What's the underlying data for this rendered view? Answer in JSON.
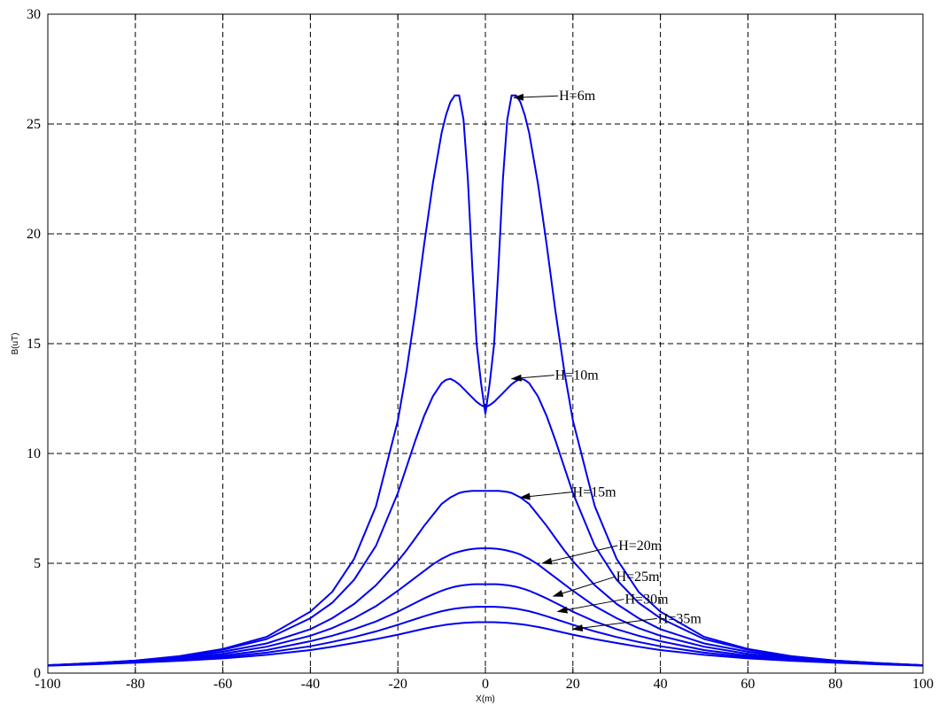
{
  "chart_data": {
    "type": "line",
    "xlabel": "X(m)",
    "ylabel": "B(uT)",
    "xlim": [
      -100,
      100
    ],
    "ylim": [
      0,
      30
    ],
    "xticks": [
      -100,
      -80,
      -60,
      -40,
      -20,
      0,
      20,
      40,
      60,
      80,
      100
    ],
    "yticks": [
      0,
      5,
      10,
      15,
      20,
      25,
      30
    ],
    "grid": true,
    "line_color": "#0000ee",
    "x": [
      -100,
      -90,
      -80,
      -70,
      -60,
      -50,
      -40,
      -35,
      -30,
      -25,
      -20,
      -18,
      -16,
      -14,
      -12,
      -10,
      -9,
      -8,
      -7,
      -6,
      -5,
      -4,
      -3,
      -2,
      -1,
      0,
      1,
      2,
      3,
      4,
      5,
      6,
      7,
      8,
      9,
      10,
      12,
      14,
      16,
      18,
      20,
      25,
      30,
      35,
      40,
      50,
      60,
      70,
      80,
      90,
      100
    ],
    "series": [
      {
        "values": [
          0.36,
          0.45,
          0.57,
          0.77,
          1.1,
          1.65,
          2.8,
          3.7,
          5.2,
          7.6,
          11.5,
          13.8,
          16.5,
          19.5,
          22.3,
          24.6,
          25.4,
          26.0,
          26.3,
          26.3,
          25.2,
          22.5,
          18.5,
          15.0,
          13.2,
          11.8,
          13.2,
          15.0,
          18.5,
          22.5,
          25.2,
          26.3,
          26.3,
          26.0,
          25.4,
          24.6,
          22.3,
          19.5,
          16.5,
          13.8,
          11.5,
          7.6,
          5.2,
          3.7,
          2.8,
          1.65,
          1.1,
          0.77,
          0.57,
          0.45,
          0.36
        ]
      },
      {
        "values": [
          0.36,
          0.45,
          0.57,
          0.76,
          1.06,
          1.55,
          2.5,
          3.2,
          4.25,
          5.8,
          8.2,
          9.4,
          10.6,
          11.7,
          12.6,
          13.2,
          13.35,
          13.4,
          13.3,
          13.15,
          12.95,
          12.75,
          12.55,
          12.35,
          12.2,
          12.1,
          12.2,
          12.35,
          12.55,
          12.75,
          12.95,
          13.15,
          13.3,
          13.4,
          13.35,
          13.2,
          12.6,
          11.7,
          10.6,
          9.4,
          8.2,
          5.8,
          4.25,
          3.2,
          2.5,
          1.55,
          1.06,
          0.76,
          0.57,
          0.45,
          0.36
        ]
      },
      {
        "values": [
          0.36,
          0.44,
          0.55,
          0.72,
          0.97,
          1.35,
          2.0,
          2.5,
          3.15,
          4.0,
          5.1,
          5.6,
          6.15,
          6.7,
          7.2,
          7.7,
          7.85,
          8.0,
          8.1,
          8.2,
          8.25,
          8.28,
          8.3,
          8.3,
          8.3,
          8.3,
          8.3,
          8.3,
          8.3,
          8.28,
          8.25,
          8.2,
          8.1,
          8.0,
          7.85,
          7.7,
          7.2,
          6.7,
          6.15,
          5.6,
          5.1,
          4.0,
          3.15,
          2.5,
          2.0,
          1.35,
          0.97,
          0.72,
          0.55,
          0.44,
          0.36
        ]
      },
      {
        "values": [
          0.36,
          0.43,
          0.53,
          0.68,
          0.88,
          1.2,
          1.7,
          2.05,
          2.5,
          3.05,
          3.75,
          4.05,
          4.35,
          4.65,
          4.95,
          5.2,
          5.3,
          5.4,
          5.47,
          5.53,
          5.58,
          5.62,
          5.65,
          5.67,
          5.68,
          5.68,
          5.68,
          5.67,
          5.65,
          5.62,
          5.58,
          5.53,
          5.47,
          5.4,
          5.3,
          5.2,
          4.95,
          4.65,
          4.35,
          4.05,
          3.75,
          3.05,
          2.5,
          2.05,
          1.7,
          1.2,
          0.88,
          0.68,
          0.53,
          0.43,
          0.36
        ]
      },
      {
        "values": [
          0.35,
          0.42,
          0.51,
          0.63,
          0.8,
          1.05,
          1.45,
          1.7,
          2.0,
          2.35,
          2.8,
          3.0,
          3.2,
          3.4,
          3.58,
          3.75,
          3.82,
          3.88,
          3.93,
          3.97,
          4.0,
          4.02,
          4.04,
          4.05,
          4.05,
          4.05,
          4.05,
          4.05,
          4.04,
          4.02,
          4.0,
          3.97,
          3.93,
          3.88,
          3.82,
          3.75,
          3.58,
          3.4,
          3.2,
          3.0,
          2.8,
          2.35,
          2.0,
          1.7,
          1.45,
          1.05,
          0.8,
          0.63,
          0.51,
          0.42,
          0.35
        ]
      },
      {
        "values": [
          0.35,
          0.41,
          0.49,
          0.6,
          0.73,
          0.93,
          1.22,
          1.42,
          1.64,
          1.9,
          2.2,
          2.33,
          2.46,
          2.59,
          2.71,
          2.82,
          2.86,
          2.9,
          2.93,
          2.96,
          2.98,
          3.0,
          3.01,
          3.02,
          3.02,
          3.02,
          3.02,
          3.02,
          3.01,
          3.0,
          2.98,
          2.96,
          2.93,
          2.9,
          2.86,
          2.82,
          2.71,
          2.59,
          2.46,
          2.33,
          2.2,
          1.9,
          1.64,
          1.42,
          1.22,
          0.93,
          0.73,
          0.6,
          0.49,
          0.41,
          0.35
        ]
      },
      {
        "values": [
          0.34,
          0.4,
          0.47,
          0.56,
          0.67,
          0.83,
          1.05,
          1.2,
          1.37,
          1.55,
          1.75,
          1.84,
          1.93,
          2.02,
          2.1,
          2.17,
          2.2,
          2.23,
          2.25,
          2.27,
          2.29,
          2.3,
          2.31,
          2.32,
          2.32,
          2.32,
          2.32,
          2.32,
          2.31,
          2.3,
          2.29,
          2.27,
          2.25,
          2.23,
          2.2,
          2.17,
          2.1,
          2.02,
          1.93,
          1.84,
          1.75,
          1.55,
          1.37,
          1.2,
          1.05,
          0.83,
          0.67,
          0.56,
          0.47,
          0.4,
          0.34
        ]
      }
    ],
    "annotations": [
      {
        "text": "H=6m",
        "x": 6.5,
        "y": 26.2
      },
      {
        "text": "H=10m",
        "x": 6,
        "y": 13.4
      },
      {
        "text": "H=15m",
        "x": 8,
        "y": 8.0
      },
      {
        "text": "H=20m",
        "x": 13,
        "y": 5.0
      },
      {
        "text": "H=25m",
        "x": 15.5,
        "y": 3.5
      },
      {
        "text": "H=30m",
        "x": 16.5,
        "y": 2.8
      },
      {
        "text": "H=35m",
        "x": 20,
        "y": 2.0
      }
    ]
  }
}
